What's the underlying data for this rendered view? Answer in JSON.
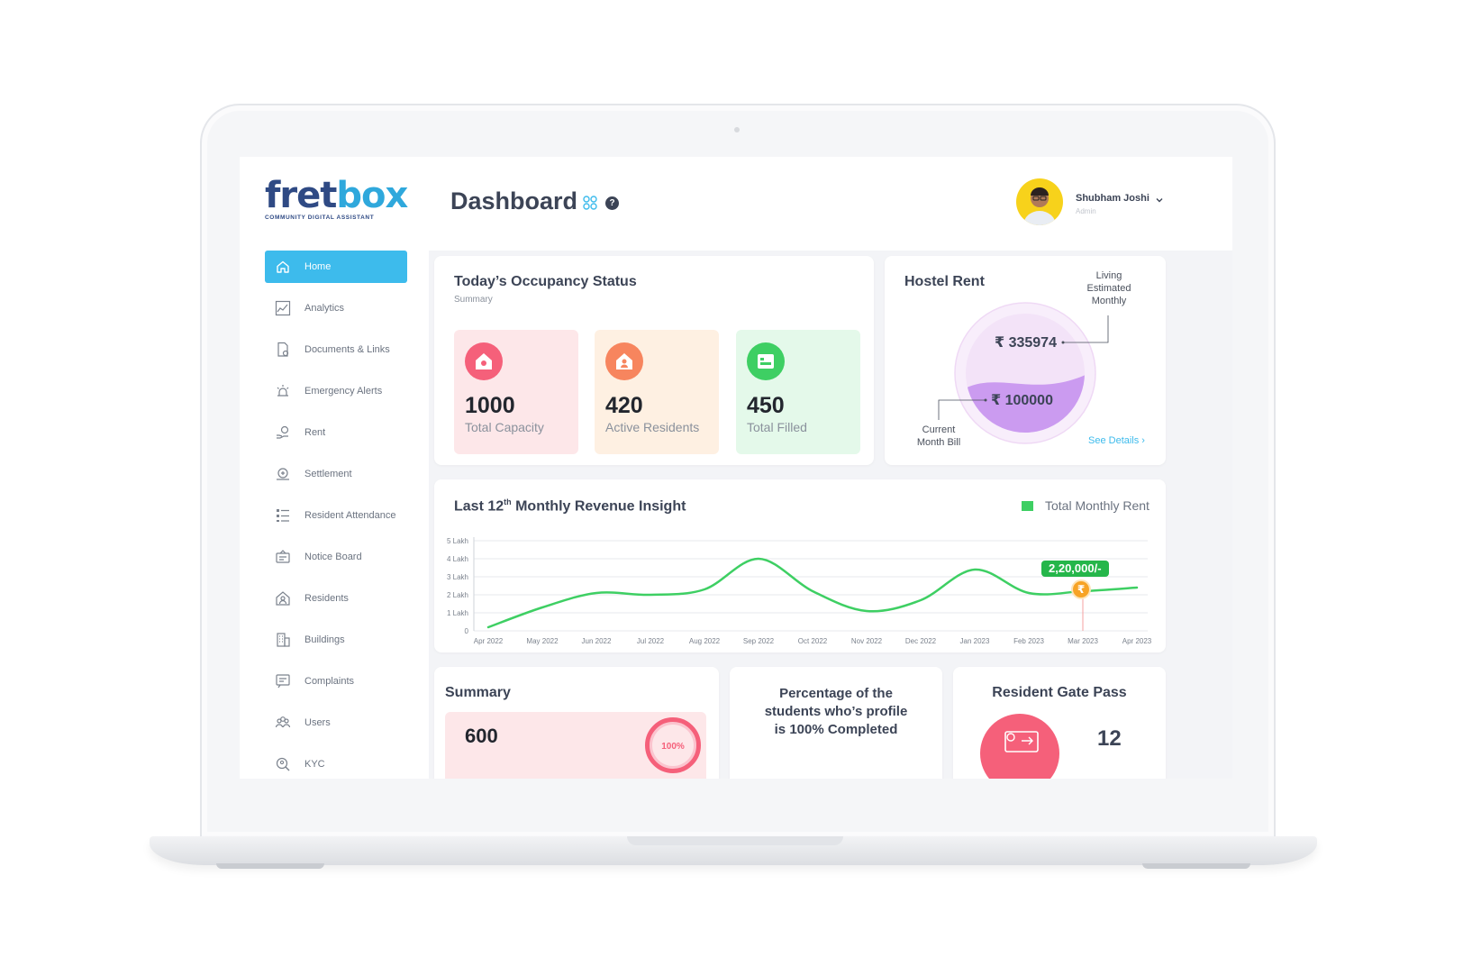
{
  "brand": {
    "logo_main": "fret",
    "logo_accent": "box",
    "tagline": "COMMUNITY DIGITAL ASSISTANT"
  },
  "sidebar": {
    "items": [
      {
        "label": "Home",
        "icon": "home-icon",
        "active": true
      },
      {
        "label": "Analytics",
        "icon": "analytics-icon"
      },
      {
        "label": "Documents & Links",
        "icon": "document-icon"
      },
      {
        "label": "Emergency Alerts",
        "icon": "alarm-icon"
      },
      {
        "label": "Rent",
        "icon": "rent-icon"
      },
      {
        "label": "Settlement",
        "icon": "settlement-icon"
      },
      {
        "label": "Resident Attendance",
        "icon": "attendance-icon"
      },
      {
        "label": "Notice Board",
        "icon": "notice-board-icon"
      },
      {
        "label": "Residents",
        "icon": "residents-icon"
      },
      {
        "label": "Buildings",
        "icon": "buildings-icon"
      },
      {
        "label": "Complaints",
        "icon": "complaints-icon"
      },
      {
        "label": "Users",
        "icon": "users-icon"
      },
      {
        "label": "KYC",
        "icon": "kyc-icon"
      }
    ]
  },
  "header": {
    "title": "Dashboard",
    "user_name": "Shubham Joshi",
    "user_role": "Admin"
  },
  "occupancy": {
    "title": "Today’s Occupancy Status",
    "subtitle": "Summary",
    "tiles": [
      {
        "value": "1000",
        "label": "Total Capacity",
        "bg": "#fde7e9",
        "icon_bg": "#f5607a"
      },
      {
        "value": "420",
        "label": "Active Residents",
        "bg": "#fef0e2",
        "icon_bg": "#f7855e"
      },
      {
        "value": "450",
        "label": "Total Filled",
        "bg": "#e4f9ea",
        "icon_bg": "#3ecf63"
      }
    ]
  },
  "hostel_rent": {
    "title": "Hostel Rent",
    "estimated_label_1": "Living",
    "estimated_label_2": "Estimated",
    "estimated_label_3": "Monthly",
    "estimated_value": "₹ 335974",
    "current_value": "₹ 100000",
    "current_label_1": "Current",
    "current_label_2": "Month Bill",
    "see_details": "See Details ›",
    "fill_fraction": 0.42
  },
  "revenue": {
    "title_pre": "Last 12",
    "title_sup": "th",
    "title_post": " Monthly Revenue Insight",
    "legend": "Total Monthly Rent",
    "tooltip": "2,20,000/-",
    "tooltip_icon": "₹"
  },
  "chart_data": {
    "type": "line",
    "x": [
      "Apr 2022",
      "May 2022",
      "Jun 2022",
      "Jul 2022",
      "Aug 2022",
      "Sep 2022",
      "Oct 2022",
      "Nov 2022",
      "Dec 2022",
      "Jan 2023",
      "Feb 2023",
      "Mar 2023",
      "Apr 2023"
    ],
    "y_ticks": [
      "0",
      "1 Lakh",
      "2 Lakh",
      "3 Lakh",
      "4 Lakh",
      "5 Lakh"
    ],
    "ylim": [
      0,
      5
    ],
    "series": [
      {
        "name": "Total Monthly Rent",
        "color": "#3ecf63",
        "values": [
          0.2,
          1.3,
          2.1,
          2.0,
          2.3,
          4.0,
          2.2,
          1.1,
          1.7,
          3.4,
          2.1,
          2.2,
          2.4
        ]
      }
    ],
    "highlight": {
      "x": "Mar 2023",
      "label": "2,20,000/-"
    },
    "legend_position": "top-right",
    "grid": true
  },
  "summary": {
    "title": "Summary",
    "value": "600",
    "ring_label": "100%"
  },
  "profile_pct": {
    "line1": "Percentage of the",
    "line2": "students who’s profile",
    "line3": "is 100% Completed"
  },
  "gate_pass": {
    "title": "Resident Gate Pass",
    "value": "12"
  }
}
